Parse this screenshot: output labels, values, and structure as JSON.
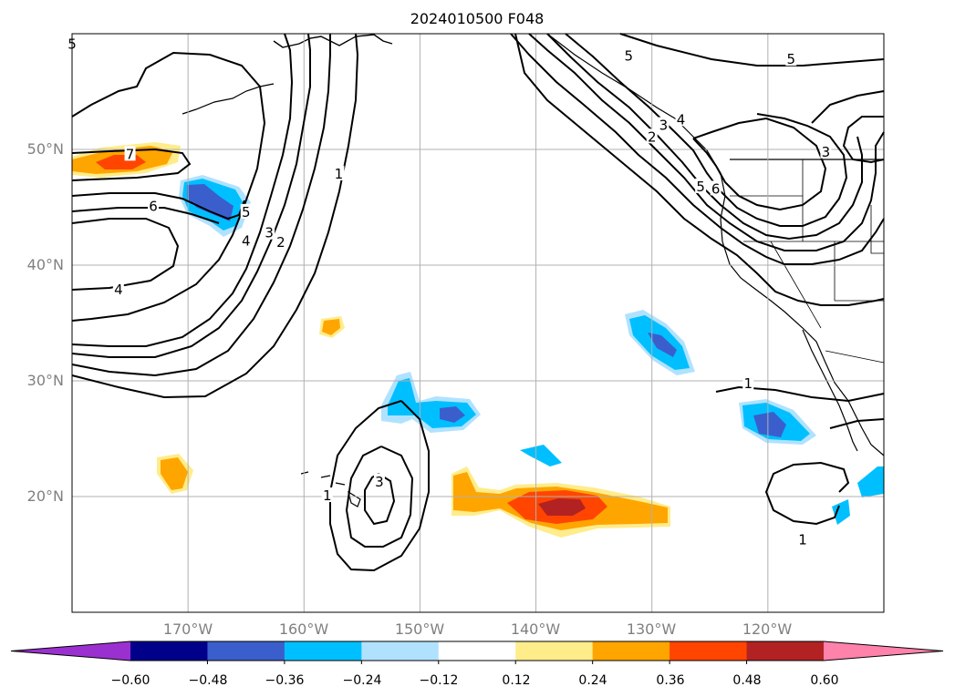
{
  "title": "2024010500 F048",
  "lat_labels": [
    "50°N",
    "40°N",
    "30°N",
    "20°N"
  ],
  "lon_labels": [
    "170°W",
    "160°W",
    "150°W",
    "140°W",
    "130°W",
    "120°W"
  ],
  "map": {
    "lon_range": [
      -180,
      -110
    ],
    "lat_range": [
      10,
      60
    ],
    "gridline_lons": [
      -170,
      -160,
      -150,
      -140,
      -130,
      -120
    ],
    "gridline_lats": [
      20,
      30,
      40,
      50
    ]
  },
  "colorbar": {
    "orientation": "horizontal",
    "extend": "both",
    "tick_labels": [
      "−0.60",
      "−0.48",
      "−0.36",
      "−0.24",
      "−0.12",
      "0.12",
      "0.24",
      "0.36",
      "0.48",
      "0.60"
    ],
    "colors": [
      "#9b30d0",
      "#00008b",
      "#3a5fcd",
      "#00bfff",
      "#b0e2ff",
      "#ffffff",
      "#ffec8b",
      "#ffa500",
      "#ff4500",
      "#b22222",
      "#ff82ab"
    ]
  },
  "contour_labels": [
    {
      "text": "5",
      "lon": -180,
      "lat": 59
    },
    {
      "text": "7",
      "lon": -175,
      "lat": 49.5
    },
    {
      "text": "6",
      "lon": -173,
      "lat": 45
    },
    {
      "text": "4",
      "lon": -176,
      "lat": 37.8
    },
    {
      "text": "5",
      "lon": -165,
      "lat": 44.5
    },
    {
      "text": "4",
      "lon": -165,
      "lat": 42
    },
    {
      "text": "3",
      "lon": -163,
      "lat": 42.7
    },
    {
      "text": "2",
      "lon": -162,
      "lat": 41.9
    },
    {
      "text": "1",
      "lon": -157,
      "lat": 47.8
    },
    {
      "text": "5",
      "lon": -132,
      "lat": 58
    },
    {
      "text": "5",
      "lon": -118,
      "lat": 57.7
    },
    {
      "text": "4",
      "lon": -127.5,
      "lat": 52.5
    },
    {
      "text": "3",
      "lon": -129,
      "lat": 52
    },
    {
      "text": "2",
      "lon": -130,
      "lat": 51
    },
    {
      "text": "5",
      "lon": -125.8,
      "lat": 46.7
    },
    {
      "text": "6",
      "lon": -124.5,
      "lat": 46.5
    },
    {
      "text": "3",
      "lon": -115,
      "lat": 49.7
    },
    {
      "text": "1",
      "lon": -121.7,
      "lat": 29.7
    },
    {
      "text": "3",
      "lon": -153.5,
      "lat": 21.2
    },
    {
      "text": "1",
      "lon": -158,
      "lat": 20
    },
    {
      "text": "1",
      "lon": -117,
      "lat": 16.2
    }
  ],
  "colors": {
    "gridline": "#b0b0b0",
    "contour": "#000000",
    "tick_label": "#808080"
  }
}
